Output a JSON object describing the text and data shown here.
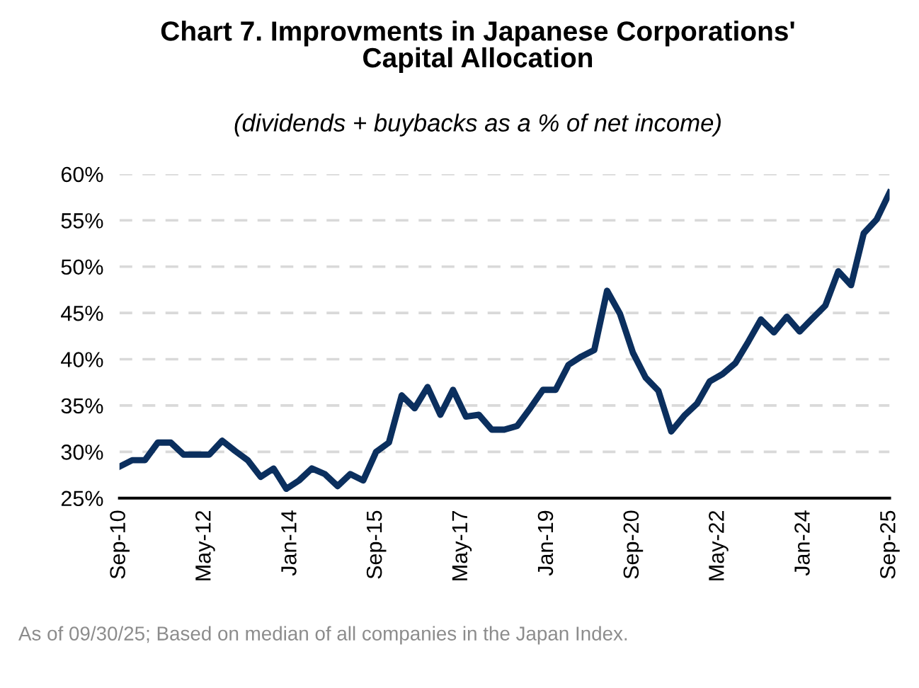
{
  "chart_data": {
    "type": "line",
    "title": "Chart 7. Improvments in Japanese Corporations'\nCapital Allocation",
    "subtitle": "(dividends + buybacks as a % of net income)",
    "annotations": [
      "As of 09/30/25; Based on median of all companies in the Japan Index."
    ],
    "x": [
      "2010-09",
      "2010-12",
      "2011-03",
      "2011-06",
      "2011-09",
      "2011-12",
      "2012-03",
      "2012-06",
      "2012-09",
      "2012-12",
      "2013-03",
      "2013-06",
      "2013-09",
      "2013-12",
      "2014-03",
      "2014-06",
      "2014-09",
      "2014-12",
      "2015-03",
      "2015-06",
      "2015-09",
      "2015-12",
      "2016-03",
      "2016-06",
      "2016-09",
      "2016-12",
      "2017-03",
      "2017-06",
      "2017-09",
      "2017-12",
      "2018-03",
      "2018-06",
      "2018-09",
      "2018-12",
      "2019-03",
      "2019-06",
      "2019-09",
      "2019-12",
      "2020-03",
      "2020-06",
      "2020-09",
      "2020-12",
      "2021-03",
      "2021-06",
      "2021-09",
      "2021-12",
      "2022-03",
      "2022-06",
      "2022-09",
      "2022-12",
      "2023-03",
      "2023-06",
      "2023-09",
      "2023-12",
      "2024-03",
      "2024-06",
      "2024-09",
      "2024-12",
      "2025-03",
      "2025-06",
      "2025-09"
    ],
    "series": [
      {
        "color": "#0b2f5e",
        "values": [
          28.4,
          29.1,
          29.1,
          31.0,
          31.0,
          29.7,
          29.7,
          29.7,
          31.2,
          30.1,
          29.1,
          27.3,
          28.2,
          26.0,
          26.9,
          28.2,
          27.6,
          26.3,
          27.6,
          26.9,
          30.0,
          31.0,
          36.1,
          34.7,
          37.0,
          34.0,
          36.7,
          33.8,
          34.0,
          32.4,
          32.4,
          32.8,
          34.7,
          36.7,
          36.7,
          39.4,
          40.3,
          41.0,
          47.4,
          44.9,
          40.7,
          38.0,
          36.6,
          32.2,
          33.9,
          35.2,
          37.6,
          38.4,
          39.6,
          41.9,
          44.3,
          42.9,
          44.6,
          43.0,
          44.4,
          45.8,
          49.5,
          48.0,
          53.6,
          55.1,
          58.0
        ]
      }
    ],
    "xlim": [
      "2010-09",
      "2025-09"
    ],
    "xticks": [
      {
        "value": "2010-09",
        "label": "Sep-10"
      },
      {
        "value": "2012-05",
        "label": "May-12"
      },
      {
        "value": "2014-01",
        "label": "Jan-14"
      },
      {
        "value": "2015-09",
        "label": "Sep-15"
      },
      {
        "value": "2017-05",
        "label": "May-17"
      },
      {
        "value": "2019-01",
        "label": "Jan-19"
      },
      {
        "value": "2020-09",
        "label": "Sep-20"
      },
      {
        "value": "2022-05",
        "label": "May-22"
      },
      {
        "value": "2024-01",
        "label": "Jan-24"
      },
      {
        "value": "2025-09",
        "label": "Sep-25"
      }
    ],
    "ylim": [
      25,
      60
    ],
    "yticks": [
      {
        "value": 25,
        "label": "25%"
      },
      {
        "value": 30,
        "label": "30%"
      },
      {
        "value": 35,
        "label": "35%"
      },
      {
        "value": 40,
        "label": "40%"
      },
      {
        "value": 45,
        "label": "45%"
      },
      {
        "value": 50,
        "label": "50%"
      },
      {
        "value": 55,
        "label": "55%"
      },
      {
        "value": 60,
        "label": "60%"
      }
    ],
    "grid": "y",
    "legend": false,
    "marker": "none",
    "line_style": "solid"
  }
}
